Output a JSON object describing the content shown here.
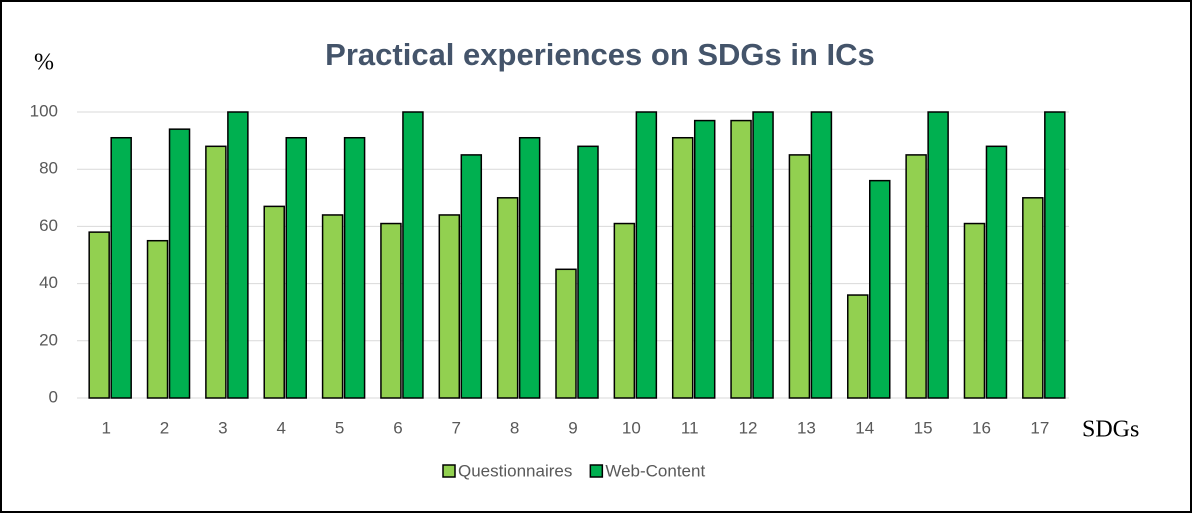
{
  "chart_data": {
    "type": "bar",
    "title": "Practical experiences on SDGs in ICs",
    "y_label": "%",
    "x_label": "SDGs",
    "categories": [
      1,
      2,
      3,
      4,
      5,
      6,
      7,
      8,
      9,
      10,
      11,
      12,
      13,
      14,
      15,
      16,
      17
    ],
    "series": [
      {
        "name": "Questionnaires",
        "color": "#92d050",
        "values": [
          58,
          55,
          88,
          67,
          64,
          61,
          64,
          70,
          45,
          61,
          91,
          97,
          85,
          36,
          85,
          61,
          70
        ]
      },
      {
        "name": "Web-Content",
        "color": "#00b050",
        "values": [
          91,
          94,
          100,
          91,
          91,
          100,
          85,
          91,
          88,
          100,
          97,
          100,
          100,
          76,
          100,
          88,
          100
        ]
      }
    ],
    "ylim": [
      0,
      100
    ],
    "yticks": [
      0,
      20,
      40,
      60,
      80,
      100
    ],
    "grid": true,
    "legend": "bottom"
  }
}
